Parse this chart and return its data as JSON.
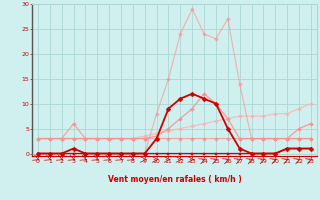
{
  "xlabel": "Vent moyen/en rafales ( km/h )",
  "bg_color": "#cff0ee",
  "grid_color": "#aad8d4",
  "spine_color": "#888888",
  "xlim": [
    -0.5,
    23.5
  ],
  "ylim": [
    -0.5,
    30
  ],
  "yticks": [
    0,
    5,
    10,
    15,
    20,
    25,
    30
  ],
  "xticks": [
    0,
    1,
    2,
    3,
    4,
    5,
    6,
    7,
    8,
    9,
    10,
    11,
    12,
    13,
    14,
    15,
    16,
    17,
    18,
    19,
    20,
    21,
    22,
    23
  ],
  "series": [
    {
      "x": [
        0,
        1,
        2,
        3,
        4,
        5,
        6,
        7,
        8,
        9,
        10,
        11,
        12,
        13,
        14,
        15,
        16,
        17,
        18,
        19,
        20,
        21,
        22,
        23
      ],
      "y": [
        0,
        0,
        0,
        0,
        0,
        0,
        0,
        0,
        0,
        0,
        0,
        0,
        0,
        0,
        0,
        0,
        0,
        0,
        0,
        0,
        0,
        1,
        1,
        1
      ],
      "color": "#cc0000",
      "linewidth": 0.9,
      "marker": "s",
      "markersize": 2.0,
      "alpha": 1.0,
      "zorder": 4
    },
    {
      "x": [
        0,
        1,
        2,
        3,
        4,
        5,
        6,
        7,
        8,
        9,
        10,
        11,
        12,
        13,
        14,
        15,
        16,
        17,
        18,
        19,
        20,
        21,
        22,
        23
      ],
      "y": [
        3,
        3,
        3,
        3,
        3,
        3,
        3,
        3,
        3,
        3,
        3.5,
        5,
        7,
        9,
        12,
        10,
        7,
        3,
        3,
        3,
        3,
        3,
        5,
        6
      ],
      "color": "#ff9090",
      "linewidth": 0.9,
      "marker": "D",
      "markersize": 2.0,
      "alpha": 0.9,
      "zorder": 3
    },
    {
      "x": [
        0,
        1,
        2,
        3,
        4,
        5,
        6,
        7,
        8,
        9,
        10,
        11,
        12,
        13,
        14,
        15,
        16,
        17,
        18,
        19,
        20,
        21,
        22,
        23
      ],
      "y": [
        3,
        3,
        3,
        3,
        3,
        3,
        3,
        3,
        3,
        3.5,
        4,
        4.5,
        5,
        5.5,
        6,
        6.5,
        7,
        7.5,
        7.5,
        7.5,
        8,
        8,
        9,
        10
      ],
      "color": "#ffb0b0",
      "linewidth": 0.9,
      "marker": "D",
      "markersize": 2.0,
      "alpha": 0.75,
      "zorder": 2
    },
    {
      "x": [
        0,
        1,
        2,
        3,
        4,
        5,
        6,
        7,
        8,
        9,
        10,
        11,
        12,
        13,
        14,
        15,
        16,
        17,
        18,
        19,
        20,
        21,
        22,
        23
      ],
      "y": [
        0,
        0,
        0,
        1,
        0,
        0,
        0,
        0,
        0,
        0,
        3,
        9,
        11,
        12,
        11,
        10,
        5,
        1,
        0,
        0,
        0,
        1,
        1,
        1
      ],
      "color": "#cc0000",
      "linewidth": 1.3,
      "marker": "D",
      "markersize": 2.5,
      "alpha": 1.0,
      "zorder": 5
    },
    {
      "x": [
        0,
        1,
        2,
        3,
        4,
        5,
        6,
        7,
        8,
        9,
        10,
        11,
        12,
        13,
        14,
        15,
        16,
        17,
        18,
        19,
        20,
        21,
        22,
        23
      ],
      "y": [
        0,
        0,
        0,
        0,
        0,
        0,
        0,
        0,
        0,
        0,
        8,
        15,
        24,
        29,
        24,
        23,
        27,
        14,
        3,
        3,
        3,
        3,
        3,
        3
      ],
      "color": "#ff9090",
      "linewidth": 0.9,
      "marker": "D",
      "markersize": 2.0,
      "alpha": 0.6,
      "zorder": 2
    },
    {
      "x": [
        0,
        1,
        2,
        3,
        4,
        5,
        6,
        7,
        8,
        9,
        10,
        11,
        12,
        13,
        14,
        15,
        16,
        17,
        18,
        19,
        20,
        21,
        22,
        23
      ],
      "y": [
        3,
        3,
        3,
        6,
        3,
        3,
        3,
        3,
        3,
        3,
        3,
        3,
        3,
        3,
        3,
        3,
        3,
        3,
        3,
        3,
        3,
        3,
        3,
        3
      ],
      "color": "#ff8888",
      "linewidth": 0.9,
      "marker": "D",
      "markersize": 2.0,
      "alpha": 0.7,
      "zorder": 2
    }
  ],
  "arrow_angles": [
    45,
    45,
    45,
    45,
    45,
    45,
    45,
    45,
    45,
    90,
    90,
    90,
    90,
    90,
    135,
    135,
    135,
    135,
    135,
    135,
    135,
    135,
    135,
    135
  ]
}
